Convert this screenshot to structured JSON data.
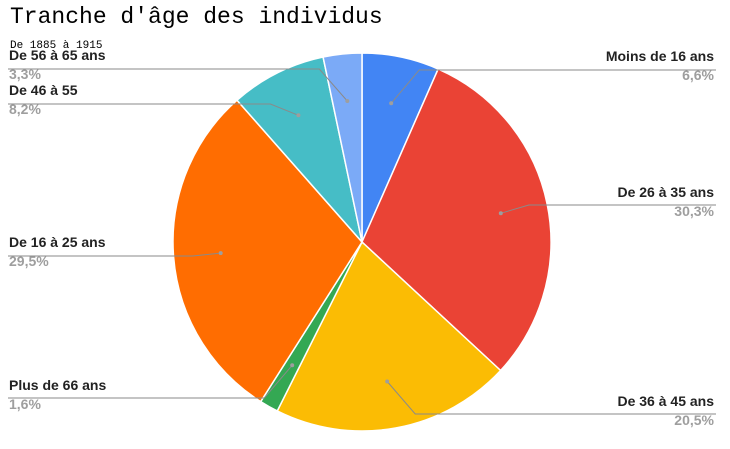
{
  "chart_data": {
    "type": "pie",
    "title": "Tranche d'âge des individus",
    "subtitle": "De 1885 à 1915",
    "slices": [
      {
        "label": "Moins de 16 ans",
        "value": 6.6,
        "value_label": "6,6%",
        "color": "#4285f4"
      },
      {
        "label": "De 26 à 35 ans",
        "value": 30.3,
        "value_label": "30,3%",
        "color": "#ea4335"
      },
      {
        "label": "De 36 à 45 ans",
        "value": 20.5,
        "value_label": "20,5%",
        "color": "#fbbc04"
      },
      {
        "label": "Plus de 66 ans",
        "value": 1.6,
        "value_label": "1,6%",
        "color": "#34a853"
      },
      {
        "label": "De 16 à 25 ans",
        "value": 29.5,
        "value_label": "29,5%",
        "color": "#ff6d01"
      },
      {
        "label": "De 46 à 55",
        "value": 8.2,
        "value_label": "8,2%",
        "color": "#46bdc6"
      },
      {
        "label": "De 56 à 65 ans",
        "value": 3.3,
        "value_label": "3,3%",
        "color": "#7baaf7"
      }
    ],
    "start_angle": "12 o'clock",
    "direction": "clockwise",
    "legend": "none",
    "label_style": "leader lines with name and percentage"
  }
}
